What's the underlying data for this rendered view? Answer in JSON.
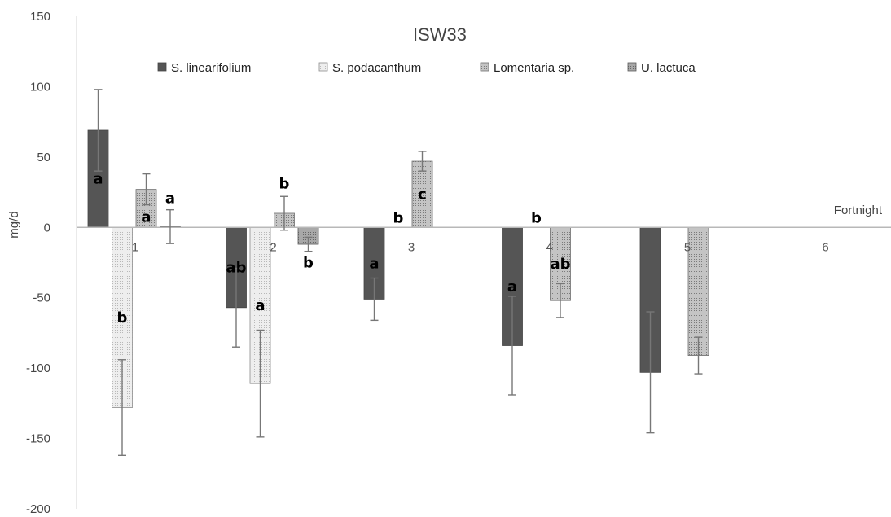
{
  "chart_data": {
    "type": "bar",
    "title": "ISW33",
    "ylabel": "mg/d",
    "xlabel": "Fortnight",
    "ylim": [
      -200,
      150
    ],
    "yticks": [
      150,
      100,
      50,
      0,
      -50,
      -100,
      -150,
      -200
    ],
    "categories": [
      "1",
      "2",
      "3",
      "4",
      "5",
      "6"
    ],
    "legend_position": "top",
    "grid": false,
    "series": [
      {
        "name": "S. linearifolium",
        "color": "#555555",
        "values": [
          69,
          -57,
          -51,
          -84,
          -103,
          0
        ],
        "errors": [
          29,
          28,
          15,
          35,
          43,
          null
        ],
        "labels": [
          "a",
          "ab",
          "a",
          "a",
          null,
          null
        ]
      },
      {
        "name": "S. podacanthum",
        "color": "#e8e8e8",
        "values": [
          -128,
          -111,
          0,
          0,
          null,
          null
        ],
        "errors": [
          34,
          38,
          null,
          null,
          null,
          null
        ],
        "labels": [
          "b",
          "a",
          "b",
          "b",
          null,
          null
        ]
      },
      {
        "name": "Lomentaria sp.",
        "color": "#b4b4b4",
        "values": [
          27,
          10,
          47,
          -52,
          -91,
          null
        ],
        "errors": [
          11,
          12,
          7,
          12,
          13,
          null
        ],
        "labels": [
          "a",
          "b",
          "c",
          "ab",
          null,
          null
        ]
      },
      {
        "name": "U. lactuca",
        "color": "#9a9a9a",
        "values": [
          0.5,
          -12,
          null,
          null,
          null,
          null
        ],
        "errors": [
          12,
          5,
          null,
          null,
          null,
          null
        ],
        "labels": [
          "a",
          "b",
          null,
          null,
          null,
          null
        ]
      }
    ]
  }
}
